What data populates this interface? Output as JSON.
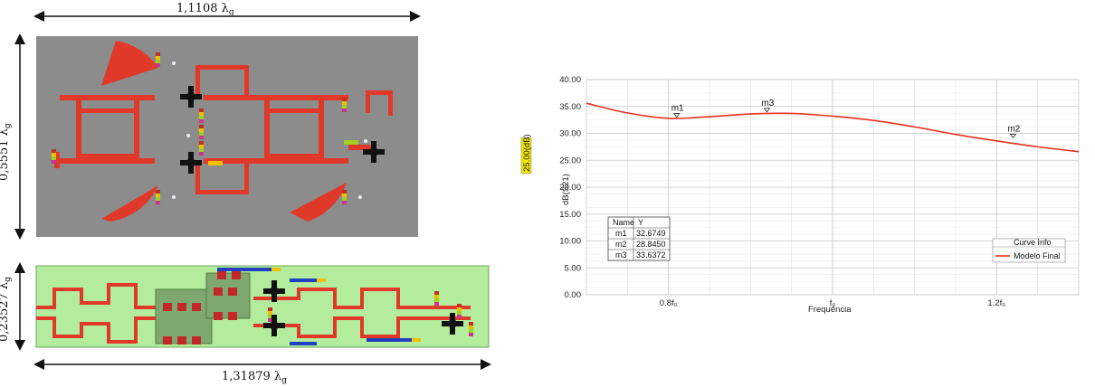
{
  "layout_top": {
    "width_label": "1,1108 λ",
    "width_sub": "g",
    "height_label": "0,5551 λ",
    "height_sub": "g"
  },
  "layout_bottom": {
    "width_label": "1,31879 λ",
    "width_sub": "g",
    "height_label": "0,23527 λ",
    "height_sub": "g"
  },
  "chart_data": {
    "type": "line",
    "title": "",
    "xlabel": "Frequência",
    "ylabel": "dB(S21)",
    "side_tag": "25.00(dB)",
    "ylim": [
      0,
      40
    ],
    "yticks": [
      "40.00",
      "35.00",
      "30.00",
      "25.00",
      "20.00",
      "15.00",
      "10.00",
      "5.00",
      "0.00"
    ],
    "xlim": [
      0.7,
      1.3
    ],
    "xticks": [
      {
        "x": 0.8,
        "label": "0.8f₀"
      },
      {
        "x": 1.0,
        "label": "f₀"
      },
      {
        "x": 1.2,
        "label": "1.2f₀"
      }
    ],
    "grid": true,
    "series": [
      {
        "name": "Modelo Final",
        "color": "#e8321e",
        "x": [
          0.7,
          0.75,
          0.8,
          0.85,
          0.9,
          0.95,
          1.0,
          1.05,
          1.1,
          1.15,
          1.2,
          1.25,
          1.3
        ],
        "y": [
          35.6,
          33.8,
          32.8,
          33.1,
          33.6,
          33.7,
          33.2,
          32.4,
          31.2,
          29.8,
          28.6,
          27.5,
          26.6
        ]
      }
    ],
    "markers": [
      {
        "name": "m1",
        "x": 0.81,
        "y": 32.6749
      },
      {
        "name": "m3",
        "x": 0.92,
        "y": 33.6372
      },
      {
        "name": "m2",
        "x": 1.22,
        "y": 28.845
      }
    ],
    "marker_table": {
      "headers": [
        "Name",
        "Y"
      ],
      "rows": [
        [
          "m1",
          "32.6749"
        ],
        [
          "m2",
          "28.8450"
        ],
        [
          "m3",
          "33.6372"
        ]
      ]
    },
    "legend": {
      "title": "Curve Info",
      "placement": "bottom-right",
      "entries": [
        "Modelo Final"
      ]
    }
  }
}
